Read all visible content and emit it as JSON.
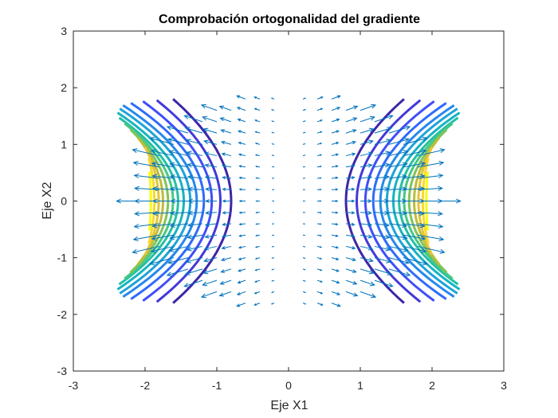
{
  "chart_data": {
    "type": "contour-quiver",
    "title": "Comprobación ortogonalidad del gradiente",
    "xlabel": "Eje X1",
    "ylabel": "Eje X2",
    "xlim": [
      -3,
      3
    ],
    "ylim": [
      -3,
      3
    ],
    "xticks": [
      "-3",
      "-2",
      "-1",
      "0",
      "1",
      "2",
      "3"
    ],
    "yticks": [
      "-3",
      "-2",
      "-1",
      "0",
      "1",
      "2",
      "3"
    ],
    "grid": false,
    "legend": "none",
    "arrow_color": "#0072BD",
    "contour_colormap": [
      "#3E26A8",
      "#4743F7",
      "#2C72FC",
      "#1FA1DB",
      "#14BCB4",
      "#4CC97F",
      "#B0BD3A",
      "#F5C637",
      "#F9FB15"
    ],
    "contour_levels": [
      {
        "x_at_center": 0.8,
        "y_extent": 1.8,
        "bend": 0.25
      },
      {
        "x_at_center": 0.95,
        "y_extent": 1.78,
        "bend": 0.28
      },
      {
        "x_at_center": 1.07,
        "y_extent": 1.76,
        "bend": 0.31
      },
      {
        "x_at_center": 1.18,
        "y_extent": 1.73,
        "bend": 0.34
      },
      {
        "x_at_center": 1.28,
        "y_extent": 1.69,
        "bend": 0.36
      },
      {
        "x_at_center": 1.37,
        "y_extent": 1.63,
        "bend": 0.37
      },
      {
        "x_at_center": 1.46,
        "y_extent": 1.56,
        "bend": 0.38
      },
      {
        "x_at_center": 1.54,
        "y_extent": 1.47,
        "bend": 0.38
      },
      {
        "x_at_center": 1.61,
        "y_extent": 1.37,
        "bend": 0.36
      },
      {
        "x_at_center": 1.68,
        "y_extent": 1.26,
        "bend": 0.33
      },
      {
        "x_at_center": 1.75,
        "y_extent": 1.12,
        "bend": 0.28
      },
      {
        "x_at_center": 1.81,
        "y_extent": 0.95,
        "bend": 0.21
      },
      {
        "x_at_center": 1.87,
        "y_extent": 0.75,
        "bend": 0.14
      },
      {
        "x_at_center": 1.92,
        "y_extent": 0.52,
        "bend": 0.07
      }
    ]
  }
}
